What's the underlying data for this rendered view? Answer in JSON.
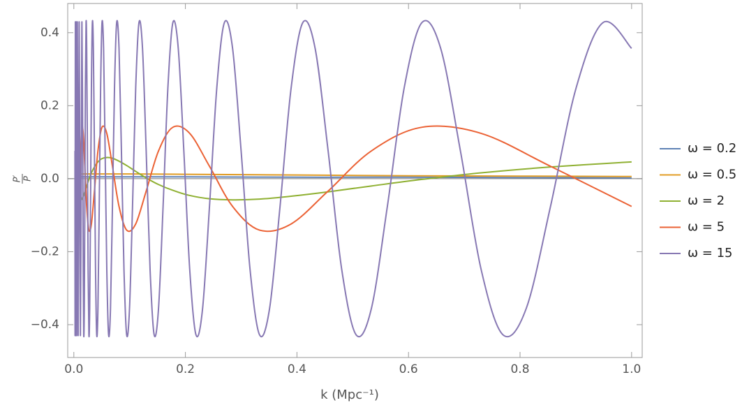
{
  "chart_data": {
    "type": "line",
    "xlabel": "k (Mpc⁻¹)",
    "ylabel_numerator": "P′",
    "ylabel_denominator": "P",
    "xlim": [
      -0.011,
      1.019
    ],
    "ylim": [
      -0.49,
      0.48
    ],
    "xticks": [
      {
        "value": 0,
        "label": "0.0"
      },
      0.2,
      0.4,
      0.6,
      0.8,
      {
        "value": 1,
        "label": "1.0"
      }
    ],
    "yticks": [
      {
        "value": -0.4,
        "label": "−0.4"
      },
      {
        "value": -0.2,
        "label": "−0.2"
      },
      {
        "value": 0,
        "label": "0.0"
      },
      0.2,
      0.4
    ],
    "legend": "right",
    "series": [
      {
        "name": "ω = 0.2",
        "color": "#5e81b5",
        "x": [
          0.002,
          0.01,
          0.05,
          0.1,
          0.2,
          0.4,
          0.6,
          0.8,
          1.0
        ],
        "values": [
          0.005,
          0.005,
          0.005,
          0.005,
          0.005,
          0.004,
          0.004,
          0.003,
          0.002
        ]
      },
      {
        "name": "ω = 0.5",
        "color": "#e19c24",
        "x": [
          0.002,
          0.01,
          0.05,
          0.1,
          0.2,
          0.4,
          0.6,
          0.8,
          1.0
        ],
        "values": [
          0.012,
          0.013,
          0.013,
          0.013,
          0.012,
          0.01,
          0.008,
          0.007,
          0.006
        ]
      },
      {
        "name": "ω = 2",
        "color": "#8fb032",
        "x": [
          0.0022,
          0.0026,
          0.003,
          0.0035,
          0.0041,
          0.0048,
          0.0056,
          0.0066,
          0.0077,
          0.009,
          0.0105,
          0.0123,
          0.0144,
          0.0168,
          0.0197,
          0.023,
          0.027,
          0.0315,
          0.0369,
          0.0432,
          0.0505,
          0.0591,
          0.0692,
          0.081,
          0.0947,
          0.1109,
          0.1297,
          0.1518,
          0.1776,
          0.2078,
          0.2432,
          0.2846,
          0.333,
          0.3896,
          0.4559,
          0.5334,
          0.6242,
          0.7304,
          0.8546,
          1.0
        ],
        "values": [
          0.055,
          0.058,
          0.056,
          0.048,
          0.036,
          0.02,
          0.002,
          -0.016,
          -0.032,
          -0.046,
          -0.055,
          -0.058,
          -0.056,
          -0.048,
          -0.036,
          -0.02,
          -0.002,
          0.016,
          0.032,
          0.046,
          0.055,
          0.058,
          0.056,
          0.048,
          0.036,
          0.02,
          0.002,
          -0.016,
          -0.032,
          -0.046,
          -0.055,
          -0.058,
          -0.056,
          -0.048,
          -0.036,
          -0.02,
          -0.002,
          0.016,
          0.032,
          0.046
        ]
      },
      {
        "name": "ω = 5",
        "color": "#eb6235",
        "x": [
          0.0022,
          0.0026,
          0.003,
          0.0035,
          0.0041,
          0.0048,
          0.0056,
          0.0066,
          0.0077,
          0.009,
          0.0105,
          0.0123,
          0.0144,
          0.0168,
          0.0197,
          0.023,
          0.027,
          0.0315,
          0.0369,
          0.0432,
          0.0505,
          0.0591,
          0.0692,
          0.081,
          0.0947,
          0.1109,
          0.1297,
          0.1518,
          0.1776,
          0.2078,
          0.2432,
          0.2846,
          0.333,
          0.3896,
          0.4559,
          0.5334,
          0.6242,
          0.7304,
          0.8546,
          1.0
        ],
        "values": [
          -0.141,
          -0.124,
          -0.034,
          0.076,
          0.141,
          0.124,
          0.034,
          -0.076,
          -0.141,
          -0.124,
          -0.034,
          0.076,
          0.141,
          0.124,
          0.034,
          -0.076,
          -0.141,
          -0.124,
          -0.034,
          0.076,
          0.141,
          0.124,
          0.034,
          -0.076,
          -0.141,
          -0.124,
          -0.034,
          0.076,
          0.141,
          0.124,
          0.034,
          -0.076,
          -0.141,
          -0.124,
          -0.034,
          0.076,
          0.141,
          0.124,
          0.034,
          -0.076
        ]
      },
      {
        "name": "ω = 15",
        "color": "#8778b3",
        "x": [
          0.002,
          0.0022,
          0.0024,
          0.0027,
          0.003,
          0.0033,
          0.0037,
          0.0041,
          0.0045,
          0.005,
          0.0056,
          0.0062,
          0.0069,
          0.0077,
          0.0085,
          0.0095,
          0.0105,
          0.0117,
          0.013,
          0.0144,
          0.016,
          0.0168,
          0.0177,
          0.0187,
          0.0197,
          0.0207,
          0.0219,
          0.023,
          0.0243,
          0.0256,
          0.027,
          0.0284,
          0.0299,
          0.0315,
          0.0332,
          0.035,
          0.0369,
          0.0389,
          0.041,
          0.0432,
          0.0455,
          0.048,
          0.0505,
          0.0533,
          0.0561,
          0.0591,
          0.0623,
          0.0657,
          0.0692,
          0.0729,
          0.0768,
          0.081,
          0.0853,
          0.0899,
          0.0947,
          0.0998,
          0.1052,
          0.1109,
          0.1168,
          0.1231,
          0.1297,
          0.1367,
          0.144,
          0.1518,
          0.16,
          0.1686,
          0.1776,
          0.1872,
          0.1972,
          0.2078,
          0.219,
          0.2308,
          0.2432,
          0.2563,
          0.27,
          0.2846,
          0.2999,
          0.316,
          0.333,
          0.3509,
          0.3697,
          0.3896,
          0.4106,
          0.4326,
          0.4559,
          0.4804,
          0.5062,
          0.5334,
          0.5621,
          0.5923,
          0.6242,
          0.6577,
          0.6931,
          0.7304,
          0.7696,
          0.811,
          0.8546,
          0.9006,
          0.949,
          1.0
        ],
        "values": [
          0.076,
          -0.428,
          -0.076,
          0.428,
          0.076,
          -0.428,
          -0.076,
          0.428,
          0.076,
          -0.428,
          -0.076,
          0.428,
          0.076,
          -0.428,
          -0.076,
          0.428,
          0.076,
          -0.428,
          -0.076,
          0.428,
          0.076,
          -0.25,
          -0.428,
          -0.356,
          -0.076,
          0.249,
          0.428,
          0.357,
          0.076,
          -0.25,
          -0.428,
          -0.356,
          -0.076,
          0.249,
          0.428,
          0.357,
          0.076,
          -0.25,
          -0.428,
          -0.356,
          -0.076,
          0.249,
          0.428,
          0.357,
          0.076,
          -0.25,
          -0.428,
          -0.356,
          -0.076,
          0.249,
          0.428,
          0.357,
          0.076,
          -0.25,
          -0.428,
          -0.356,
          -0.076,
          0.249,
          0.428,
          0.357,
          0.076,
          -0.25,
          -0.428,
          -0.356,
          -0.076,
          0.249,
          0.428,
          0.357,
          0.076,
          -0.25,
          -0.428,
          -0.356,
          -0.076,
          0.249,
          0.428,
          0.357,
          0.076,
          -0.25,
          -0.428,
          -0.356,
          -0.076,
          0.249,
          0.428,
          0.357,
          0.076,
          -0.25,
          -0.428,
          -0.356,
          -0.076,
          0.249,
          0.428,
          0.357,
          0.076,
          -0.25,
          -0.428,
          -0.356,
          -0.076,
          0.249,
          0.428,
          0.357
        ]
      }
    ]
  }
}
